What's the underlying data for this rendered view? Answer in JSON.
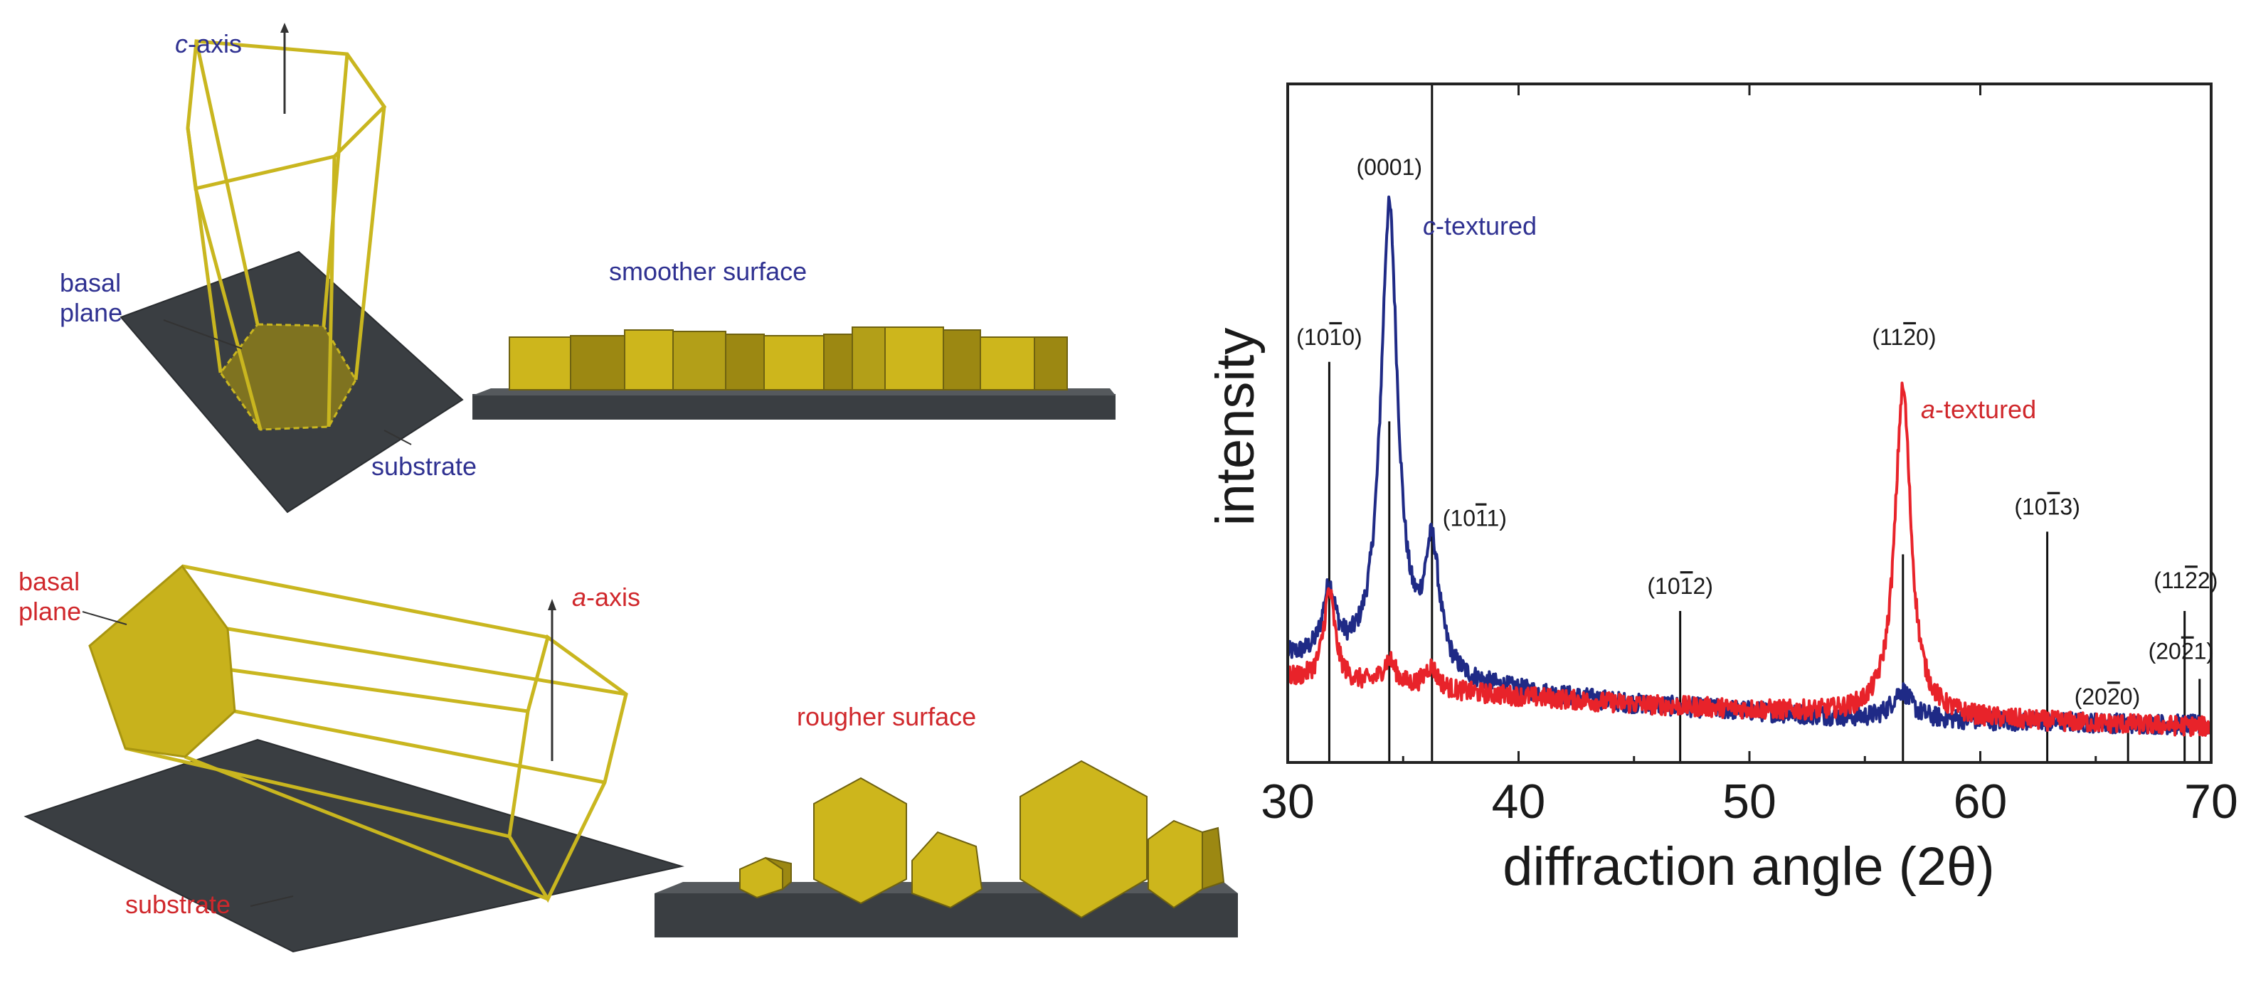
{
  "colors": {
    "blue_text": "#2f3191",
    "red_text": "#d0282c",
    "c_series": "#1f2a86",
    "a_series": "#e8232a",
    "crystal_edge": "#c9b61f",
    "crystal_fill": "#c8b21c",
    "crystal_dark": "#8e7c12",
    "substrate": "#3a3e42"
  },
  "schematic": {
    "c_axis": {
      "prefix": "c",
      "suffix": "-axis"
    },
    "c_basal_line1": "basal",
    "c_basal_line2": "plane",
    "c_substrate": "substrate",
    "smoother": "smoother surface",
    "a_basal_line1": "basal",
    "a_basal_line2": "plane",
    "a_axis": {
      "prefix": "a",
      "suffix": "-axis"
    },
    "a_substrate": "substrate",
    "rougher": "rougher surface"
  },
  "chart_data": {
    "type": "line",
    "xlabel": "diffraction angle (2θ)",
    "ylabel": "intensity",
    "xlim": [
      30,
      70
    ],
    "ylim": [
      0,
      1
    ],
    "xticks": [
      "30",
      "40",
      "50",
      "60",
      "70"
    ],
    "xtick_values": [
      30,
      40,
      50,
      60,
      70
    ],
    "series": [
      {
        "name": "c-textured",
        "label_prefix": "c",
        "label_suffix": "-textured",
        "color": "#1f2a86",
        "background": [
          [
            30,
            0.165
          ],
          [
            36.5,
            0.12
          ],
          [
            45,
            0.085
          ],
          [
            55,
            0.06
          ],
          [
            62,
            0.055
          ],
          [
            70,
            0.048
          ]
        ],
        "peaks": [
          {
            "x": 31.8,
            "height": 0.12,
            "width": 0.35
          },
          {
            "x": 34.4,
            "height": 0.82,
            "width": 0.45
          },
          {
            "x": 36.25,
            "height": 0.22,
            "width": 0.4
          },
          {
            "x": 56.6,
            "height": 0.05,
            "width": 0.5
          }
        ]
      },
      {
        "name": "a-textured",
        "label_prefix": "a",
        "label_suffix": "-textured",
        "color": "#e8232a",
        "background": [
          [
            30,
            0.13
          ],
          [
            36,
            0.11
          ],
          [
            45,
            0.085
          ],
          [
            55,
            0.065
          ],
          [
            62,
            0.055
          ],
          [
            70,
            0.045
          ]
        ],
        "peaks": [
          {
            "x": 31.8,
            "height": 0.16,
            "width": 0.3
          },
          {
            "x": 34.4,
            "height": 0.045,
            "width": 0.35
          },
          {
            "x": 36.2,
            "height": 0.04,
            "width": 0.35
          },
          {
            "x": 56.65,
            "height": 0.58,
            "width": 0.42
          }
        ]
      }
    ],
    "reference_lines": [
      {
        "x": 31.8,
        "top": 0.69,
        "label": "(10<o>1</o>0)"
      },
      {
        "x": 34.4,
        "top": 0.585,
        "label": ""
      },
      {
        "x": 36.25,
        "top": 1.0,
        "label": ""
      },
      {
        "x": 47.0,
        "top": 0.25,
        "label": "(10<o>1</o>2)"
      },
      {
        "x": 56.65,
        "top": 0.35,
        "label": ""
      },
      {
        "x": 62.9,
        "top": 0.39,
        "label": "(10<o>1</o>3)"
      },
      {
        "x": 66.4,
        "top": 0.05,
        "label": "(20<o>2</o>0)"
      },
      {
        "x": 68.85,
        "top": 0.25,
        "label": "(11<o>2</o>2)"
      },
      {
        "x": 69.5,
        "top": 0.13,
        "label": "(20<o>2</o>1)"
      }
    ],
    "peak_labels": [
      {
        "text": "(0001)",
        "x": 34.4,
        "y": 1.02
      },
      {
        "text": "(10<o>1</o>0)",
        "x": 31.8,
        "y": 0.72
      },
      {
        "text": "(10<o>1</o>1)",
        "x": 38.1,
        "y": 0.4
      },
      {
        "text": "(10<o>1</o>2)",
        "x": 47.0,
        "y": 0.28
      },
      {
        "text": "(11<o>2</o>0)",
        "x": 56.7,
        "y": 0.72
      },
      {
        "text": "(10<o>1</o>3)",
        "x": 62.9,
        "y": 0.42
      },
      {
        "text": "(20<o>2</o>0)",
        "x": 65.5,
        "y": 0.085
      },
      {
        "text": "(11<o>2</o>2)",
        "x": 68.9,
        "y": 0.29
      },
      {
        "text": "(20<o>2</o>1)",
        "x": 68.7,
        "y": 0.165
      }
    ]
  }
}
